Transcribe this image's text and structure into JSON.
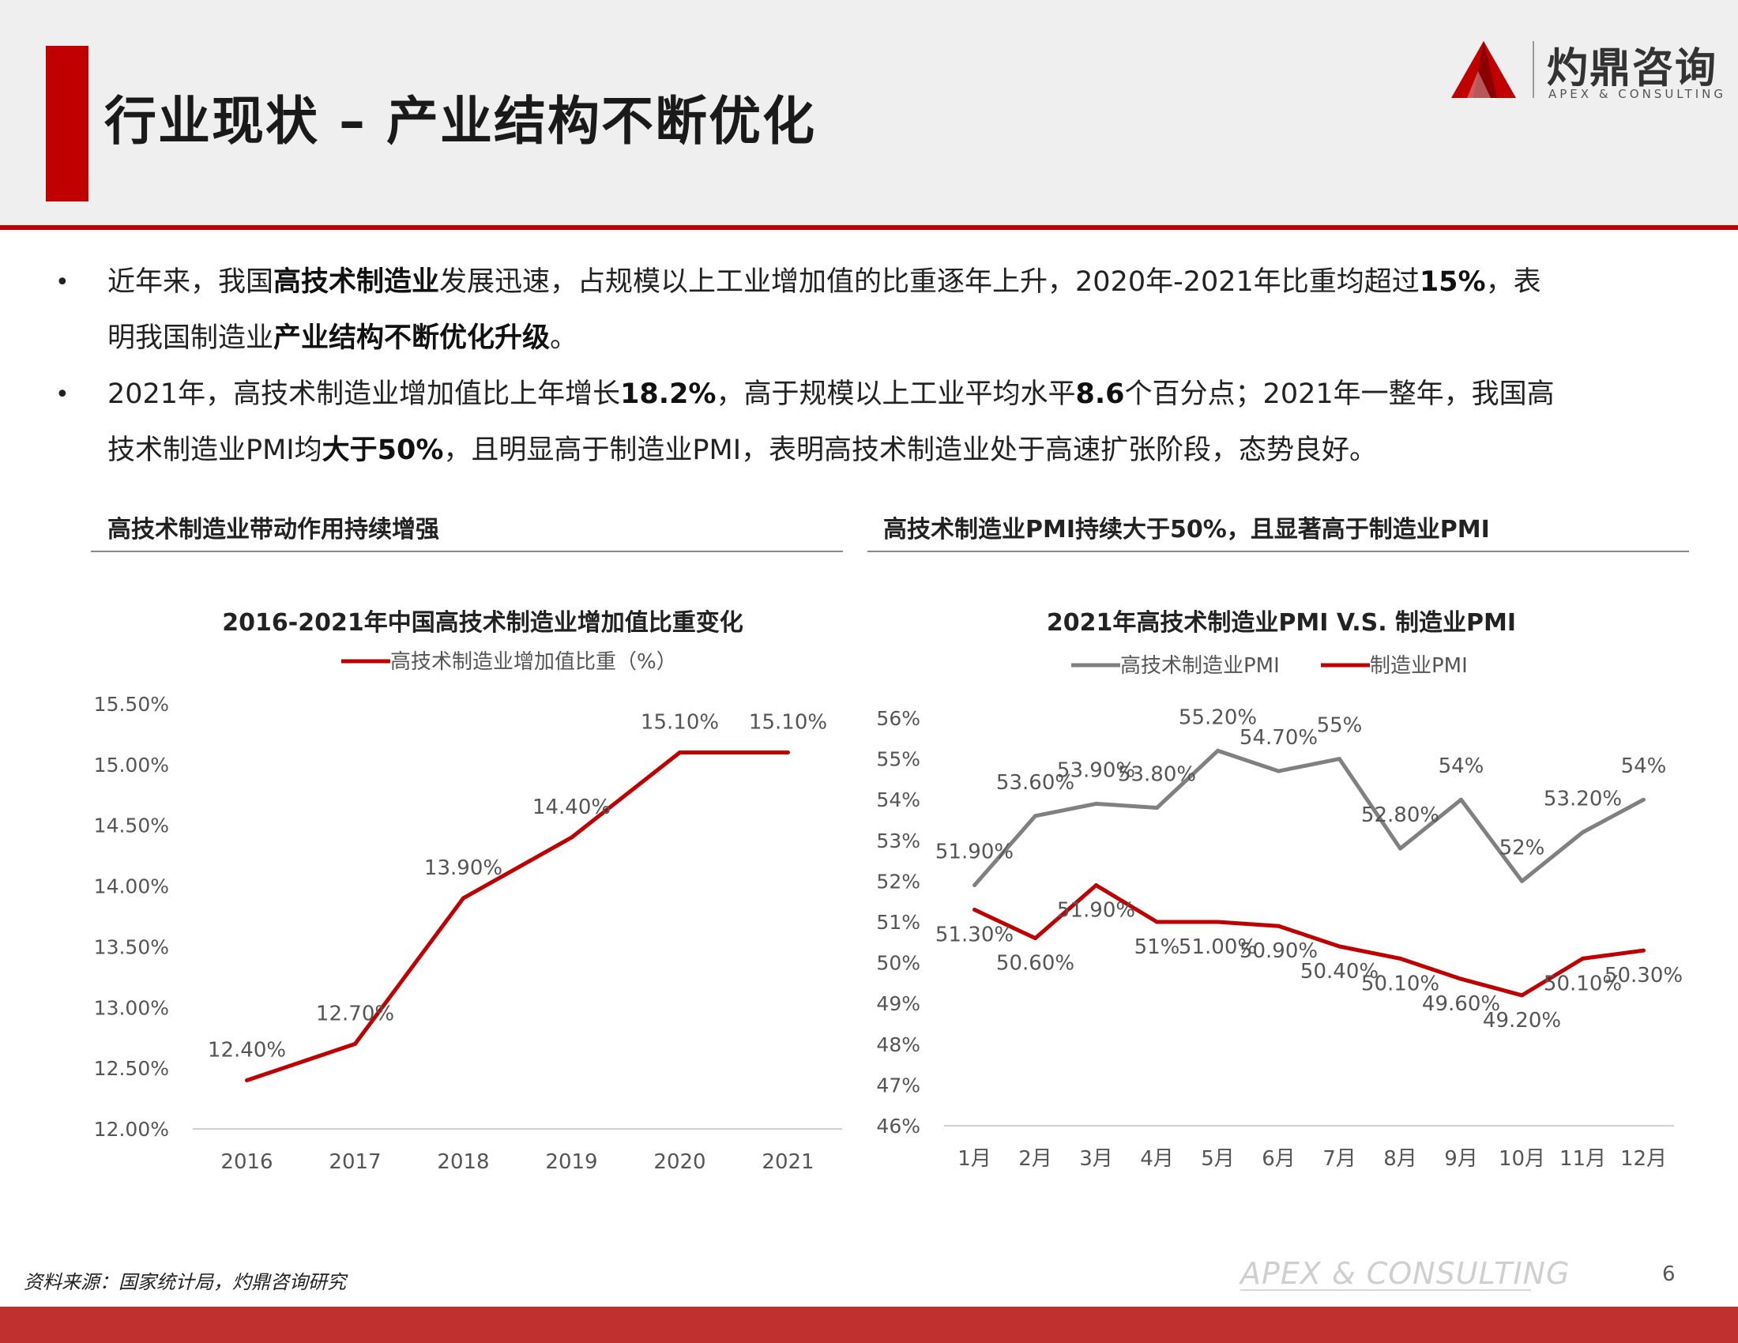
{
  "header": {
    "title": "行业现状 – 产业结构不断优化",
    "logo_cn": "灼鼎咨询",
    "logo_en": "APEX & CONSULTING"
  },
  "bullets": [
    {
      "line1": [
        {
          "t": "近年来，我国",
          "b": false
        },
        {
          "t": "高技术制造业",
          "b": true
        },
        {
          "t": "发展迅速，占规模以上工业增加值的比重逐年上升，2020年-2021年比重均超过",
          "b": false
        },
        {
          "t": "15%",
          "b": true
        },
        {
          "t": "，表",
          "b": false
        }
      ],
      "line2": [
        {
          "t": "明我国制造业",
          "b": false
        },
        {
          "t": "产业结构不断优化升级",
          "b": true
        },
        {
          "t": "。",
          "b": false
        }
      ]
    },
    {
      "line1": [
        {
          "t": "2021年，高技术制造业增加值比上年增长",
          "b": false
        },
        {
          "t": "18.2%",
          "b": true
        },
        {
          "t": "，高于规模以上工业平均水平",
          "b": false
        },
        {
          "t": "8.6",
          "b": true
        },
        {
          "t": "个百分点；2021年一整年，我国高",
          "b": false
        }
      ],
      "line2": [
        {
          "t": "技术制造业PMI均",
          "b": false
        },
        {
          "t": "大于50%",
          "b": true
        },
        {
          "t": "，且明显高于制造业PMI，表明高技术制造业处于高速扩张阶段，态势良好。",
          "b": false
        }
      ]
    }
  ],
  "panels": {
    "left_title": "高技术制造业带动作用持续增强",
    "right_title": "高技术制造业PMI持续大于50%，且显著高于制造业PMI"
  },
  "chart_data": [
    {
      "type": "line",
      "title": "2016-2021年中国高技术制造业增加值比重变化",
      "categories": [
        "2016",
        "2017",
        "2018",
        "2019",
        "2020",
        "2021"
      ],
      "series": [
        {
          "name": "高技术制造业增加值比重（%）",
          "color": "#c00000",
          "values": [
            12.4,
            12.7,
            13.9,
            14.4,
            15.1,
            15.1
          ],
          "labels": [
            "12.40%",
            "12.70%",
            "13.90%",
            "14.40%",
            "15.10%",
            "15.10%"
          ]
        }
      ],
      "ylim": [
        12.0,
        15.5
      ],
      "yticks": [
        "12.00%",
        "12.50%",
        "13.00%",
        "13.50%",
        "14.00%",
        "14.50%",
        "15.00%",
        "15.50%"
      ],
      "xlabel": "",
      "ylabel": "",
      "grid": false,
      "legend": "top"
    },
    {
      "type": "line",
      "title": "2021年高技术制造业PMI V.S. 制造业PMI",
      "categories": [
        "1月",
        "2月",
        "3月",
        "4月",
        "5月",
        "6月",
        "7月",
        "8月",
        "9月",
        "10月",
        "11月",
        "12月"
      ],
      "series": [
        {
          "name": "高技术制造业PMI",
          "color": "#808080",
          "values": [
            51.9,
            53.6,
            53.9,
            53.8,
            55.2,
            54.7,
            55,
            52.8,
            54,
            52,
            53.2,
            54
          ],
          "labels": [
            "51.90%",
            "53.60%",
            "53.90%",
            "53.80%",
            "55.20%",
            "54.70%",
            "55%",
            "52.80%",
            "54%",
            "52%",
            "53.20%",
            "54%"
          ]
        },
        {
          "name": "制造业PMI",
          "color": "#c00000",
          "values": [
            51.3,
            50.6,
            51.9,
            51,
            51,
            50.9,
            50.4,
            50.1,
            49.6,
            49.2,
            50.1,
            50.3
          ],
          "labels": [
            "51.30%",
            "50.60%",
            "51.90%",
            "51%",
            "51.00%",
            "50.90%",
            "50.40%",
            "50.10%",
            "49.60%",
            "49.20%",
            "50.10%",
            "50.30%"
          ]
        }
      ],
      "ylim": [
        46,
        56
      ],
      "yticks": [
        "46%",
        "47%",
        "48%",
        "49%",
        "50%",
        "51%",
        "52%",
        "53%",
        "54%",
        "55%",
        "56%"
      ],
      "xlabel": "",
      "ylabel": "",
      "grid": false,
      "legend": "top"
    }
  ],
  "footer": {
    "source": "资料来源：国家统计局，灼鼎咨询研究",
    "brand": "APEX & CONSULTING",
    "page": "6"
  }
}
